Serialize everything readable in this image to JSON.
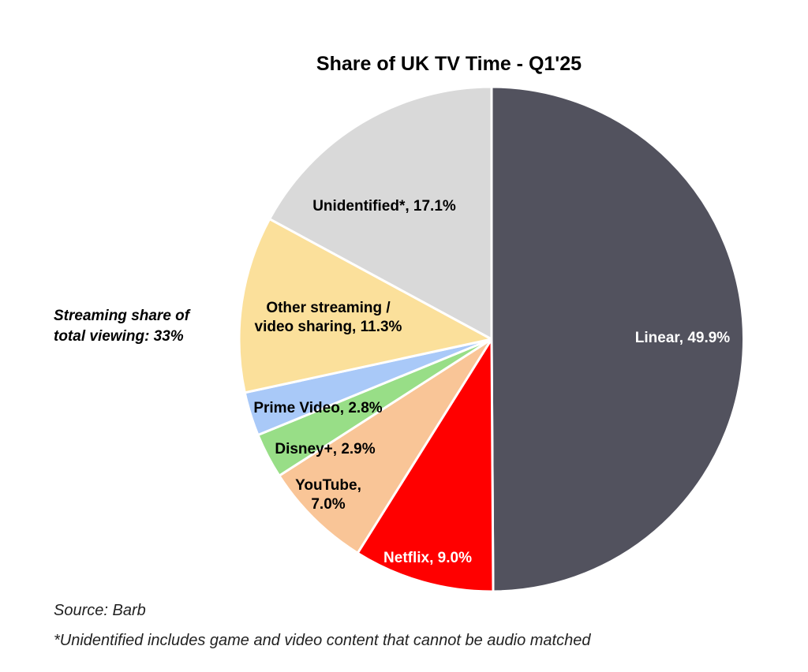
{
  "chart_data": {
    "type": "pie",
    "title": "Share of UK TV Time - Q1'25",
    "start": "12 o'clock, clockwise",
    "slices": [
      {
        "name": "Linear",
        "value": 49.9,
        "color": "#52525e",
        "label_lines": [
          "Linear, 49.9%"
        ],
        "label_color": "#ffffff"
      },
      {
        "name": "Netflix",
        "value": 9.0,
        "color": "#ff0000",
        "label_lines": [
          "Netflix, 9.0%"
        ],
        "label_color": "#ffffff"
      },
      {
        "name": "YouTube",
        "value": 7.0,
        "color": "#f9c597",
        "label_lines": [
          "YouTube,",
          "7.0%"
        ],
        "label_color": "#000000"
      },
      {
        "name": "Disney+",
        "value": 2.9,
        "color": "#98de87",
        "label_lines": [
          "Disney+, 2.9%"
        ],
        "label_color": "#000000"
      },
      {
        "name": "Prime Video",
        "value": 2.8,
        "color": "#a9c9f8",
        "label_lines": [
          "Prime Video, 2.8%"
        ],
        "label_color": "#000000"
      },
      {
        "name": "Other streaming / video sharing",
        "value": 11.3,
        "color": "#fbe09b",
        "label_lines": [
          "Other streaming /",
          "video sharing, 11.3%"
        ],
        "label_color": "#000000"
      },
      {
        "name": "Unidentified*",
        "value": 17.1,
        "color": "#d9d9d9",
        "label_lines": [
          "Unidentified*, 17.1%"
        ],
        "label_color": "#000000"
      }
    ],
    "annotation_lines": [
      "Streaming share of",
      "total viewing: 33%"
    ]
  },
  "footnotes": {
    "source": "Source: Barb",
    "unidentified": "*Unidentified includes game and video content that cannot be audio matched"
  }
}
